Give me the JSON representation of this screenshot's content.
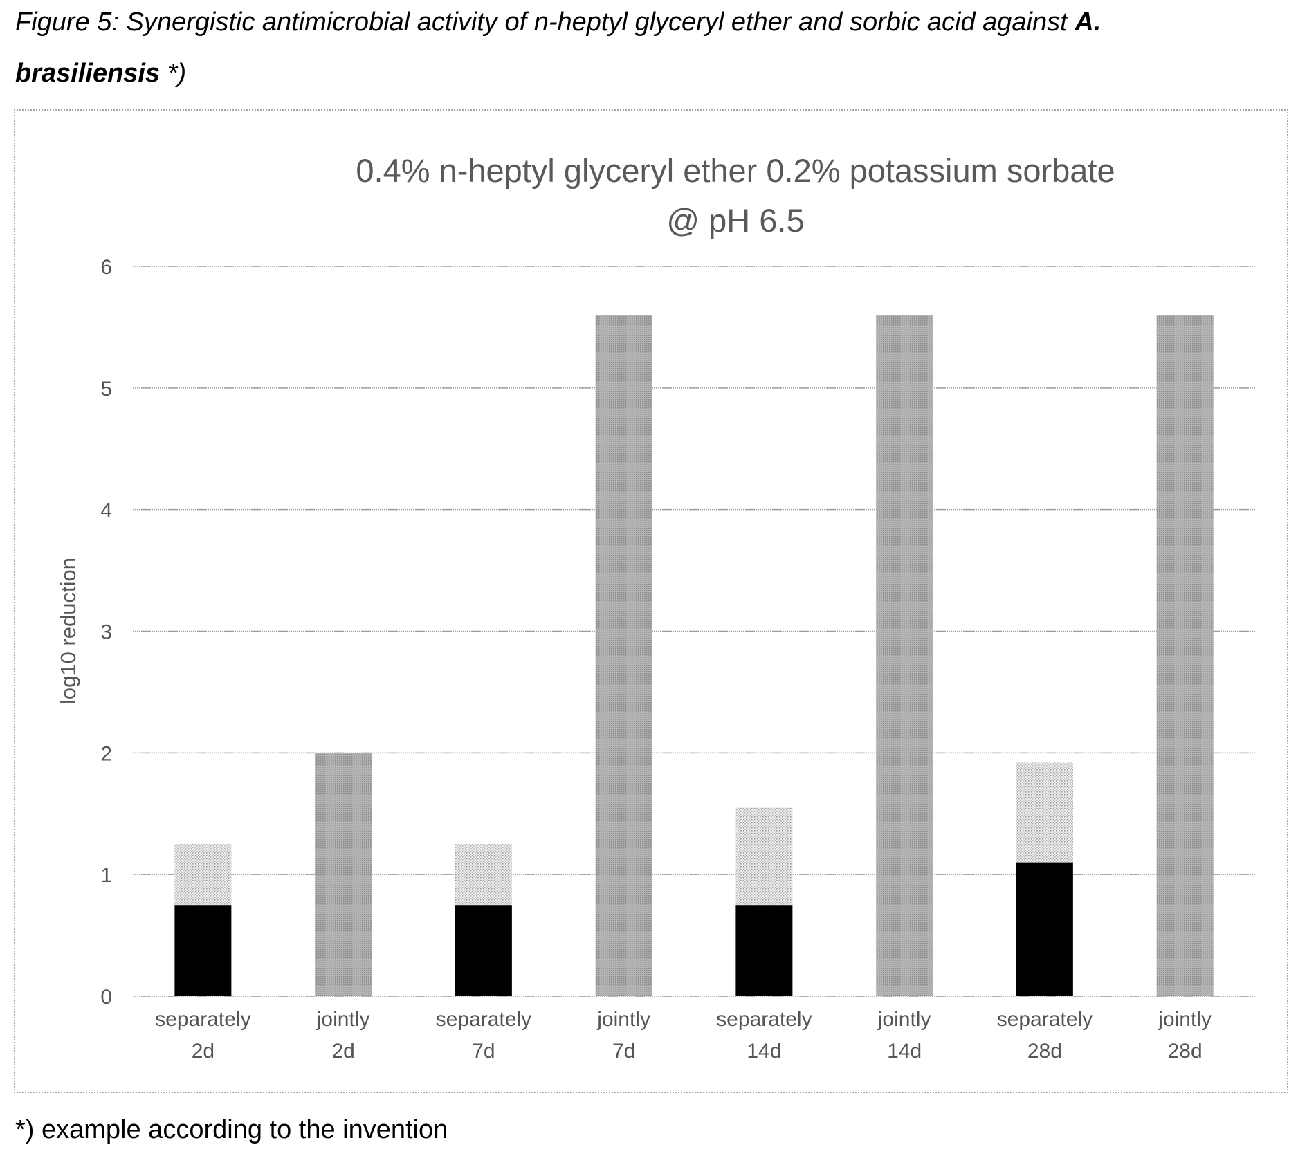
{
  "figure": {
    "caption_text": "Figure 5: Synergistic antimicrobial activity of n-heptyl glyceryl ether and sorbic acid against ",
    "caption_bold": "A.",
    "caption_line2_bold": "brasiliensis",
    "caption_line2_rest": " *)",
    "footnote": "*) example according to the invention"
  },
  "chart_data": {
    "type": "bar",
    "stacked": true,
    "title": [
      "0.4% n-heptyl glyceryl ether 0.2% potassium sorbate",
      "@ pH 6.5"
    ],
    "ylabel": "log10 reduction",
    "xlabel": "",
    "ylim": [
      0,
      6
    ],
    "yticks": [
      0,
      1,
      2,
      3,
      4,
      5,
      6
    ],
    "grid": true,
    "legend": "none",
    "categories": [
      [
        "separately",
        "2d"
      ],
      [
        "jointly",
        "2d"
      ],
      [
        "separately",
        "7d"
      ],
      [
        "jointly",
        "7d"
      ],
      [
        "separately",
        "14d"
      ],
      [
        "jointly",
        "14d"
      ],
      [
        "separately",
        "28d"
      ],
      [
        "jointly",
        "28d"
      ]
    ],
    "series": [
      {
        "color": "#000000",
        "values": [
          0.75,
          0,
          0.75,
          0,
          0.75,
          0,
          1.1,
          0
        ]
      },
      {
        "color": "#d2d2d2",
        "values": [
          0.5,
          0,
          0.5,
          0,
          0.8,
          0,
          0.82,
          0
        ]
      },
      {
        "color": "#a9a9a9",
        "values": [
          0,
          2.0,
          0,
          5.6,
          0,
          5.6,
          0,
          5.6
        ]
      }
    ]
  }
}
